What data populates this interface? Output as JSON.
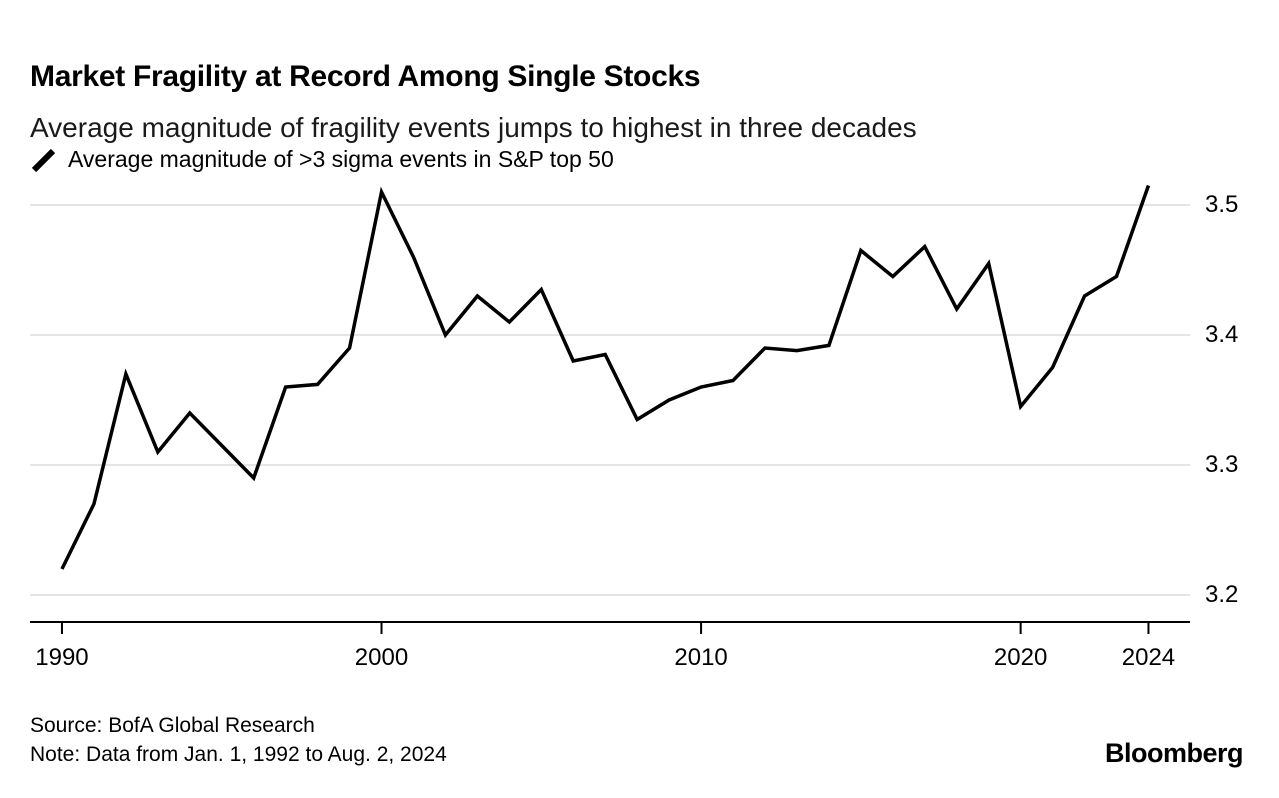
{
  "header": {
    "title": "Market Fragility at Record Among Single Stocks",
    "subtitle": "Average magnitude of fragility events jumps to highest in three decades"
  },
  "legend": {
    "label": "Average magnitude of >3 sigma events in S&P top 50",
    "swatch_color": "#000000"
  },
  "chart_data": {
    "type": "line",
    "title": "Market Fragility at Record Among Single Stocks",
    "subtitle": "Average magnitude of fragility events jumps to highest in three decades",
    "series": [
      {
        "name": "Average magnitude of >3 sigma events in S&P top 50",
        "color": "#000000",
        "x": [
          1990,
          1991,
          1992,
          1993,
          1994,
          1995,
          1996,
          1997,
          1998,
          1999,
          2000,
          2001,
          2002,
          2003,
          2004,
          2005,
          2006,
          2007,
          2008,
          2009,
          2010,
          2011,
          2012,
          2013,
          2014,
          2015,
          2016,
          2017,
          2018,
          2019,
          2020,
          2021,
          2022,
          2023,
          2024
        ],
        "values": [
          3.22,
          3.27,
          3.37,
          3.31,
          3.34,
          3.315,
          3.29,
          3.36,
          3.362,
          3.39,
          3.51,
          3.46,
          3.4,
          3.43,
          3.41,
          3.435,
          3.38,
          3.385,
          3.335,
          3.35,
          3.36,
          3.365,
          3.39,
          3.388,
          3.392,
          3.465,
          3.445,
          3.468,
          3.42,
          3.455,
          3.345,
          3.375,
          3.43,
          3.445,
          3.515
        ]
      }
    ],
    "xlabel": "",
    "ylabel": "",
    "x_ticks": [
      1990,
      2000,
      2010,
      2020,
      2024
    ],
    "y_ticks": [
      3.2,
      3.3,
      3.4,
      3.5
    ],
    "xlim": [
      1989,
      2025.3
    ],
    "ylim": [
      3.18,
      3.54
    ],
    "grid": "horizontal",
    "legend_position": "top-left",
    "grid_color": "#dcdcdc",
    "axis_color": "#000000"
  },
  "footer": {
    "source": "Source: BofA Global Research",
    "note": "Note: Data from Jan. 1, 1992 to Aug. 2, 2024",
    "brand": "Bloomberg"
  }
}
